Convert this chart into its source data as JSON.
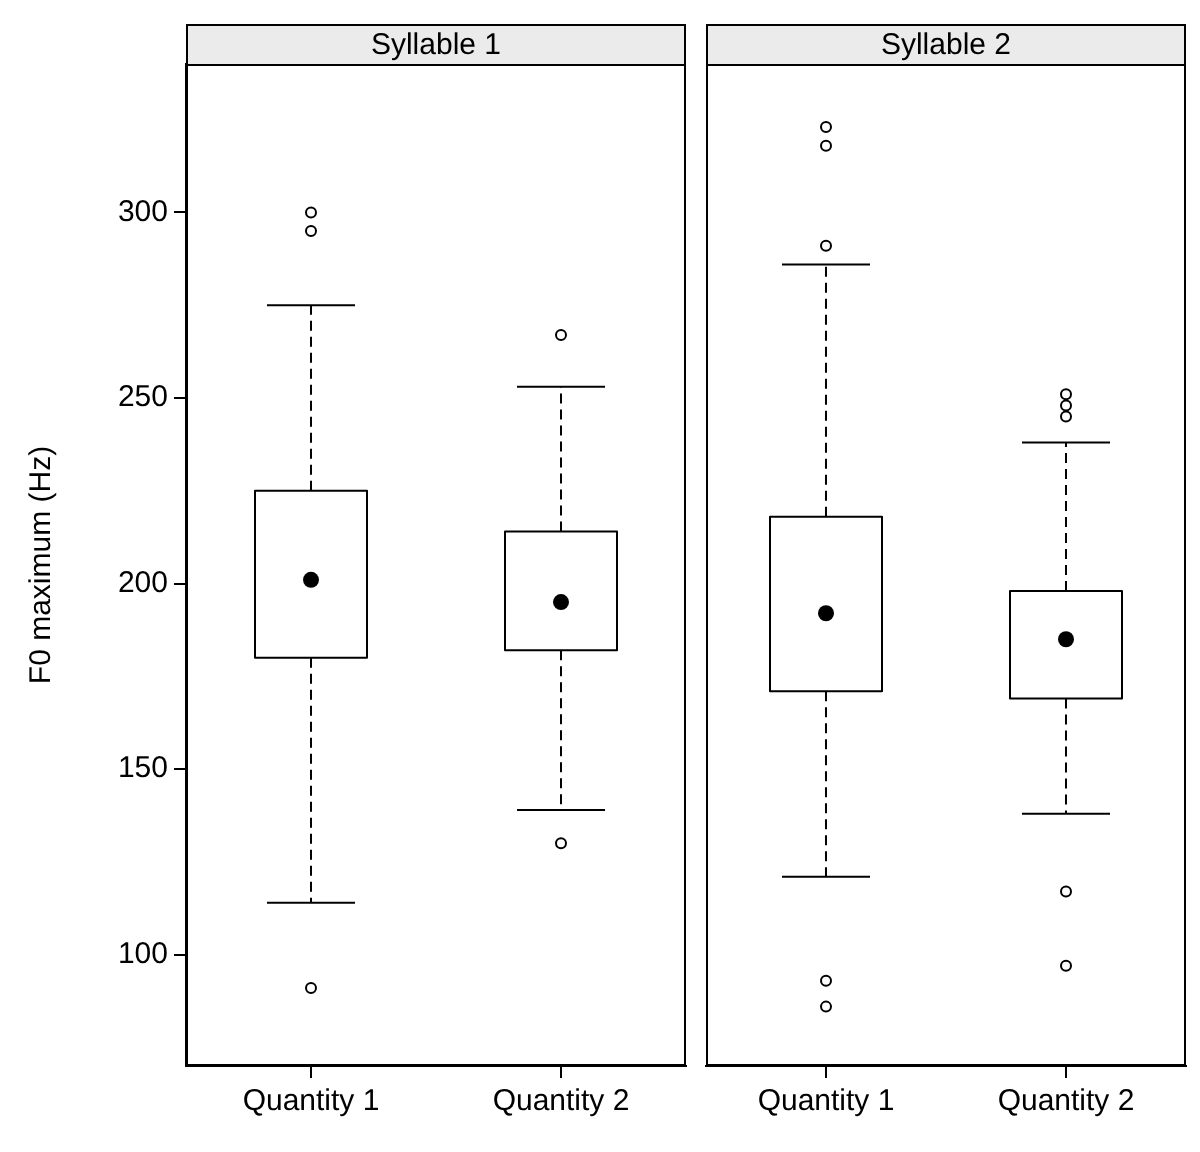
{
  "chart_data": [
    {
      "type": "box",
      "title": "Syllable 1",
      "ylabel": "F0 maximum (Hz)",
      "categories": [
        "Quantity 1",
        "Quantity 2"
      ],
      "ylim": [
        70,
        340
      ],
      "yticks": [
        100,
        150,
        200,
        250,
        300
      ],
      "boxes": [
        {
          "low": 114,
          "q1": 180,
          "median": 201,
          "q3": 225,
          "high": 275,
          "outliers": [
            300,
            295,
            91
          ]
        },
        {
          "low": 139,
          "q1": 182,
          "median": 195,
          "q3": 214,
          "high": 253,
          "outliers": [
            267,
            130
          ]
        }
      ]
    },
    {
      "type": "box",
      "title": "Syllable 2",
      "categories": [
        "Quantity 1",
        "Quantity 2"
      ],
      "ylim": [
        70,
        340
      ],
      "yticks": [
        100,
        150,
        200,
        250,
        300
      ],
      "tick_labels": "x",
      "boxes": [
        {
          "low": 121,
          "q1": 171,
          "median": 192,
          "q3": 218,
          "high": 286,
          "outliers": [
            323,
            318,
            291,
            93,
            86
          ]
        },
        {
          "low": 138,
          "q1": 169,
          "median": 185,
          "q3": 198,
          "high": 238,
          "outliers": [
            251,
            248,
            245,
            117,
            97
          ]
        }
      ]
    }
  ]
}
